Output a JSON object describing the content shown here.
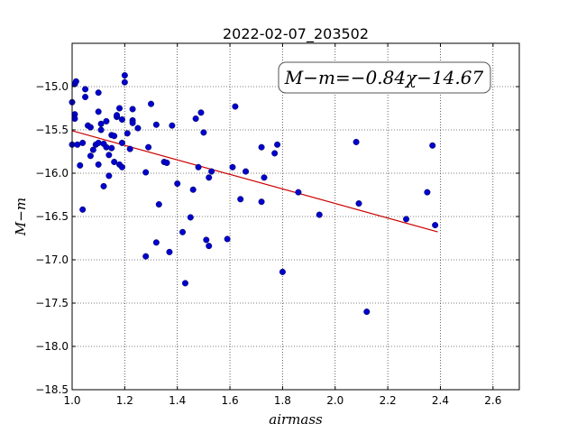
{
  "chart_data": {
    "type": "scatter",
    "title": "2022-02-07_203502",
    "xlabel": "airmass",
    "ylabel": "M−m",
    "xlim": [
      1.0,
      2.7
    ],
    "ylim": [
      -18.5,
      -14.5
    ],
    "y_inverted": true,
    "grid": true,
    "grid_style": "dotted",
    "x_ticks": [
      "1.0",
      "1.2",
      "1.4",
      "1.6",
      "1.8",
      "2.0",
      "2.2",
      "2.4",
      "2.6"
    ],
    "y_ticks": [
      "−15.0",
      "−15.5",
      "−16.0",
      "−16.5",
      "−17.0",
      "−17.5",
      "−18.0",
      "−18.5"
    ],
    "annotation": {
      "text": "M−m=−0.84χ−14.67",
      "placement": "top-right"
    },
    "fit_line": {
      "slope": -0.84,
      "intercept": -14.67,
      "x_range": [
        1.0,
        2.39
      ],
      "color": "#cc0000"
    },
    "point_color": "#0000cc",
    "points": [
      [
        1.0,
        -15.18
      ],
      [
        1.01,
        -14.97
      ],
      [
        1.01,
        -15.32
      ],
      [
        1.01,
        -15.37
      ],
      [
        1.0,
        -15.67
      ],
      [
        1.02,
        -15.67
      ],
      [
        1.015,
        -14.94
      ],
      [
        1.03,
        -15.91
      ],
      [
        1.04,
        -15.65
      ],
      [
        1.04,
        -16.42
      ],
      [
        1.05,
        -15.03
      ],
      [
        1.05,
        -15.12
      ],
      [
        1.06,
        -15.45
      ],
      [
        1.07,
        -15.47
      ],
      [
        1.07,
        -15.8
      ],
      [
        1.08,
        -15.73
      ],
      [
        1.09,
        -15.67
      ],
      [
        1.1,
        -15.65
      ],
      [
        1.1,
        -15.07
      ],
      [
        1.1,
        -15.29
      ],
      [
        1.1,
        -15.9
      ],
      [
        1.11,
        -15.43
      ],
      [
        1.11,
        -15.5
      ],
      [
        1.12,
        -15.66
      ],
      [
        1.12,
        -16.15
      ],
      [
        1.13,
        -15.4
      ],
      [
        1.13,
        -15.7
      ],
      [
        1.14,
        -15.79
      ],
      [
        1.14,
        -16.03
      ],
      [
        1.15,
        -15.56
      ],
      [
        1.15,
        -15.71
      ],
      [
        1.16,
        -15.57
      ],
      [
        1.16,
        -15.87
      ],
      [
        1.17,
        -15.35
      ],
      [
        1.17,
        -15.33
      ],
      [
        1.18,
        -15.25
      ],
      [
        1.18,
        -15.9
      ],
      [
        1.19,
        -15.93
      ],
      [
        1.19,
        -15.38
      ],
      [
        1.19,
        -15.65
      ],
      [
        1.2,
        -14.87
      ],
      [
        1.2,
        -14.95
      ],
      [
        1.21,
        -15.54
      ],
      [
        1.22,
        -15.72
      ],
      [
        1.23,
        -15.39
      ],
      [
        1.23,
        -15.26
      ],
      [
        1.23,
        -15.42
      ],
      [
        1.25,
        -15.48
      ],
      [
        1.28,
        -15.99
      ],
      [
        1.28,
        -16.96
      ],
      [
        1.29,
        -15.7
      ],
      [
        1.3,
        -15.2
      ],
      [
        1.32,
        -15.44
      ],
      [
        1.32,
        -16.8
      ],
      [
        1.33,
        -16.36
      ],
      [
        1.35,
        -15.87
      ],
      [
        1.36,
        -15.88
      ],
      [
        1.37,
        -16.91
      ],
      [
        1.38,
        -15.45
      ],
      [
        1.4,
        -16.12
      ],
      [
        1.42,
        -16.68
      ],
      [
        1.43,
        -17.27
      ],
      [
        1.45,
        -16.51
      ],
      [
        1.46,
        -16.19
      ],
      [
        1.47,
        -15.37
      ],
      [
        1.48,
        -15.93
      ],
      [
        1.49,
        -15.3
      ],
      [
        1.5,
        -15.53
      ],
      [
        1.51,
        -16.77
      ],
      [
        1.52,
        -16.84
      ],
      [
        1.52,
        -16.05
      ],
      [
        1.53,
        -15.98
      ],
      [
        1.59,
        -16.76
      ],
      [
        1.61,
        -15.93
      ],
      [
        1.62,
        -15.23
      ],
      [
        1.64,
        -16.3
      ],
      [
        1.66,
        -15.98
      ],
      [
        1.72,
        -15.7
      ],
      [
        1.72,
        -16.33
      ],
      [
        1.73,
        -16.05
      ],
      [
        1.77,
        -15.77
      ],
      [
        1.78,
        -15.67
      ],
      [
        1.8,
        -17.14
      ],
      [
        1.86,
        -16.22
      ],
      [
        1.94,
        -16.48
      ],
      [
        2.08,
        -15.64
      ],
      [
        2.09,
        -16.35
      ],
      [
        2.12,
        -17.6
      ],
      [
        2.27,
        -16.53
      ],
      [
        2.35,
        -16.22
      ],
      [
        2.37,
        -15.68
      ],
      [
        2.38,
        -16.6
      ]
    ]
  }
}
